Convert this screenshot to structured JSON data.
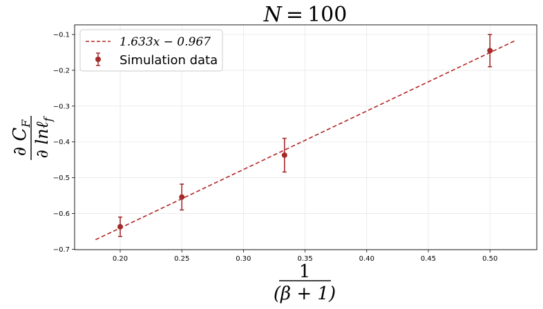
{
  "chart_data": {
    "type": "scatter",
    "title": "N = 100",
    "xlabel": {
      "numerator": "1",
      "denominator": "(β + 1)"
    },
    "ylabel": {
      "numerator": "∂ C_F",
      "denominator": "∂ lnℓ_f"
    },
    "xlim": [
      0.163,
      0.538
    ],
    "ylim": [
      -0.701,
      -0.073
    ],
    "xticks": [
      0.2,
      0.25,
      0.3,
      0.35,
      0.4,
      0.45,
      0.5
    ],
    "xtick_labels": [
      "0.20",
      "0.25",
      "0.30",
      "0.35",
      "0.40",
      "0.45",
      "0.50"
    ],
    "yticks": [
      -0.7,
      -0.6,
      -0.5,
      -0.4,
      -0.3,
      -0.2,
      -0.1
    ],
    "ytick_labels": [
      "−0.7",
      "−0.6",
      "−0.5",
      "−0.4",
      "−0.3",
      "−0.2",
      "−0.1"
    ],
    "grid": true,
    "legend_position": "top-left",
    "series": [
      {
        "name": "1.633x − 0.967",
        "kind": "fit-line",
        "style": "dashed",
        "color": "#b22222",
        "slope": 1.633,
        "intercept": -0.967,
        "x_range": [
          0.18,
          0.52
        ]
      },
      {
        "name": "Simulation data",
        "kind": "errorbar",
        "color": "#a52a2a",
        "points": [
          {
            "x": 0.2,
            "y": -0.637,
            "err": 0.027
          },
          {
            "x": 0.25,
            "y": -0.554,
            "err": 0.036
          },
          {
            "x": 0.3333,
            "y": -0.437,
            "err": 0.047
          },
          {
            "x": 0.5,
            "y": -0.145,
            "err": 0.045
          }
        ]
      }
    ]
  }
}
